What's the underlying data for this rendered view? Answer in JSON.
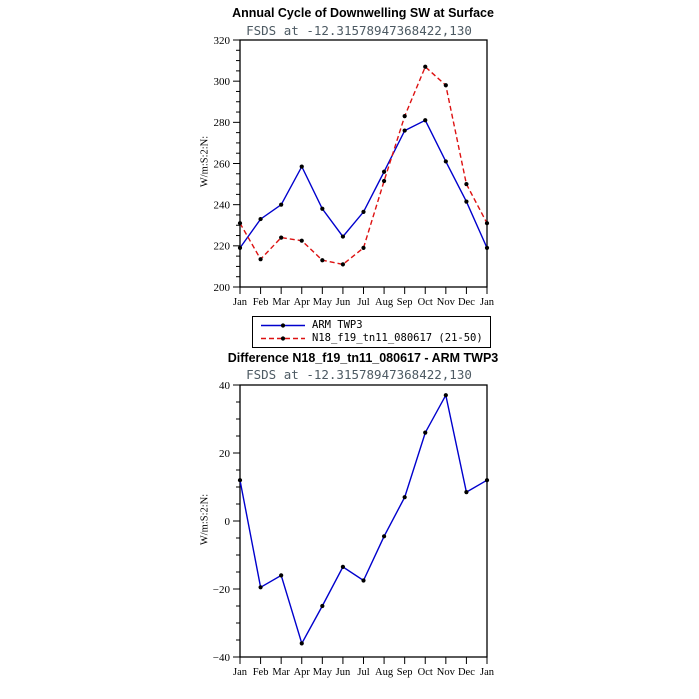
{
  "figure": {
    "background": "#ffffff",
    "axis_color": "#000000",
    "marker_color": "#000000",
    "subtitle_color": "#4d5a63"
  },
  "chart_data": [
    {
      "type": "line",
      "title": "Annual Cycle of Downwelling SW at Surface",
      "subtitle": "FSDS at -12.31578947368422,130",
      "ylabel": "W/m:S:2:N:",
      "categories": [
        "Jan",
        "Feb",
        "Mar",
        "Apr",
        "May",
        "Jun",
        "Jul",
        "Aug",
        "Sep",
        "Oct",
        "Nov",
        "Dec",
        "Jan"
      ],
      "ylim": [
        200,
        320
      ],
      "ytick_step": 20,
      "yticks": [
        200,
        220,
        240,
        260,
        280,
        300,
        320
      ],
      "grid": false,
      "legend_position": "below",
      "series": [
        {
          "name": "ARM TWP3",
          "color": "#0000cd",
          "line_style": "solid",
          "marker": "dot",
          "values": [
            219,
            233,
            240,
            258.5,
            238,
            224.5,
            236.5,
            256,
            276,
            281,
            261,
            241.5,
            219
          ]
        },
        {
          "name": "N18_f19_tn11_080617 (21-50)",
          "color": "#dd1111",
          "line_style": "dashed",
          "marker": "dot",
          "values": [
            231,
            213.5,
            224,
            222.5,
            213,
            211,
            219,
            251.5,
            283,
            307,
            298,
            250,
            231
          ]
        }
      ]
    },
    {
      "type": "line",
      "title": "Difference N18_f19_tn11_080617 - ARM TWP3",
      "subtitle": "FSDS at -12.31578947368422,130",
      "ylabel": "W/m:S:2:N:",
      "categories": [
        "Jan",
        "Feb",
        "Mar",
        "Apr",
        "May",
        "Jun",
        "Jul",
        "Aug",
        "Sep",
        "Oct",
        "Nov",
        "Dec",
        "Jan"
      ],
      "ylim": [
        -40,
        40
      ],
      "ytick_step": 20,
      "yticks": [
        -40,
        -20,
        0,
        20,
        40
      ],
      "grid": false,
      "legend_position": "none",
      "series": [
        {
          "name": "N18_f19_tn11_080617 - ARM TWP3",
          "color": "#0000cd",
          "line_style": "solid",
          "marker": "dot",
          "values": [
            12,
            -19.5,
            -16,
            -36,
            -25,
            -13.5,
            -17.5,
            -4.5,
            7,
            26,
            37,
            8.5,
            12
          ]
        }
      ]
    }
  ]
}
